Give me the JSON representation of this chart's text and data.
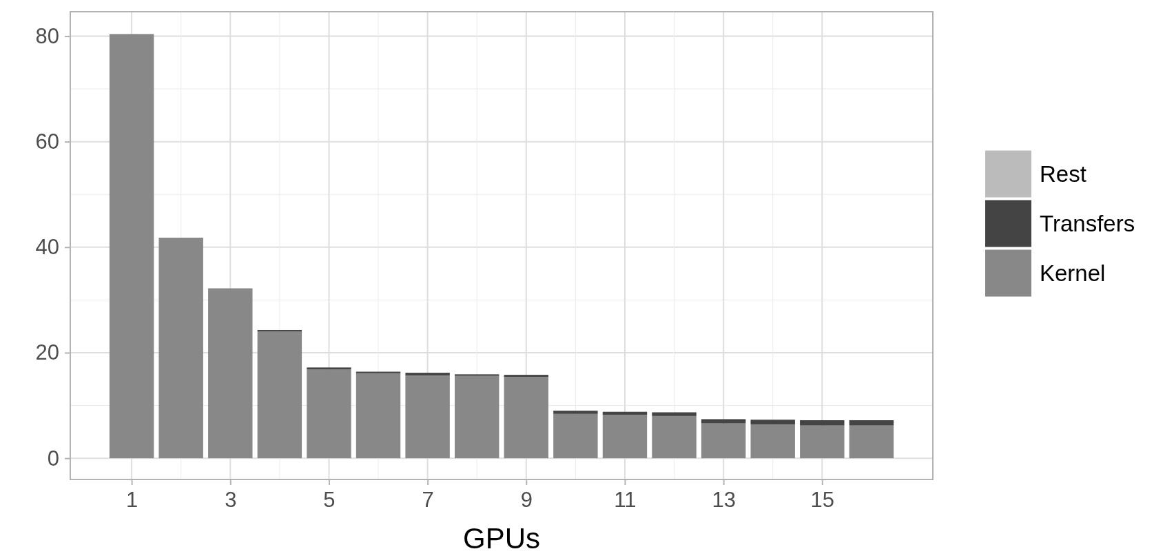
{
  "chart_data": {
    "type": "bar",
    "stacked": true,
    "xlabel": "GPUs",
    "x": [
      1,
      2,
      3,
      4,
      5,
      6,
      7,
      8,
      9,
      10,
      11,
      12,
      13,
      14,
      15,
      16
    ],
    "series": [
      {
        "name": "Kernel",
        "color": "#888888",
        "values": [
          80.4,
          41.8,
          32.2,
          24.0,
          16.8,
          16.1,
          15.7,
          15.6,
          15.4,
          8.4,
          8.2,
          8.0,
          6.6,
          6.4,
          6.2,
          6.2
        ]
      },
      {
        "name": "Transfers",
        "color": "#444444",
        "values": [
          0,
          0,
          0,
          0.3,
          0.4,
          0.3,
          0.5,
          0.3,
          0.4,
          0.6,
          0.6,
          0.7,
          0.8,
          0.9,
          1.0,
          1.0
        ]
      },
      {
        "name": "Rest",
        "color": "#bbbbbb",
        "values": [
          0,
          0,
          0,
          0,
          0,
          0,
          0,
          0,
          0,
          0,
          0,
          0,
          0,
          0,
          0,
          0
        ]
      }
    ],
    "xlim": [
      -0.245,
      17.245
    ],
    "xticks": [
      1,
      3,
      5,
      7,
      9,
      11,
      13,
      15
    ],
    "ylim": [
      -4.03,
      84.63
    ],
    "yticks": [
      0,
      20,
      40,
      60,
      80
    ],
    "grid": true,
    "legend": "right"
  }
}
